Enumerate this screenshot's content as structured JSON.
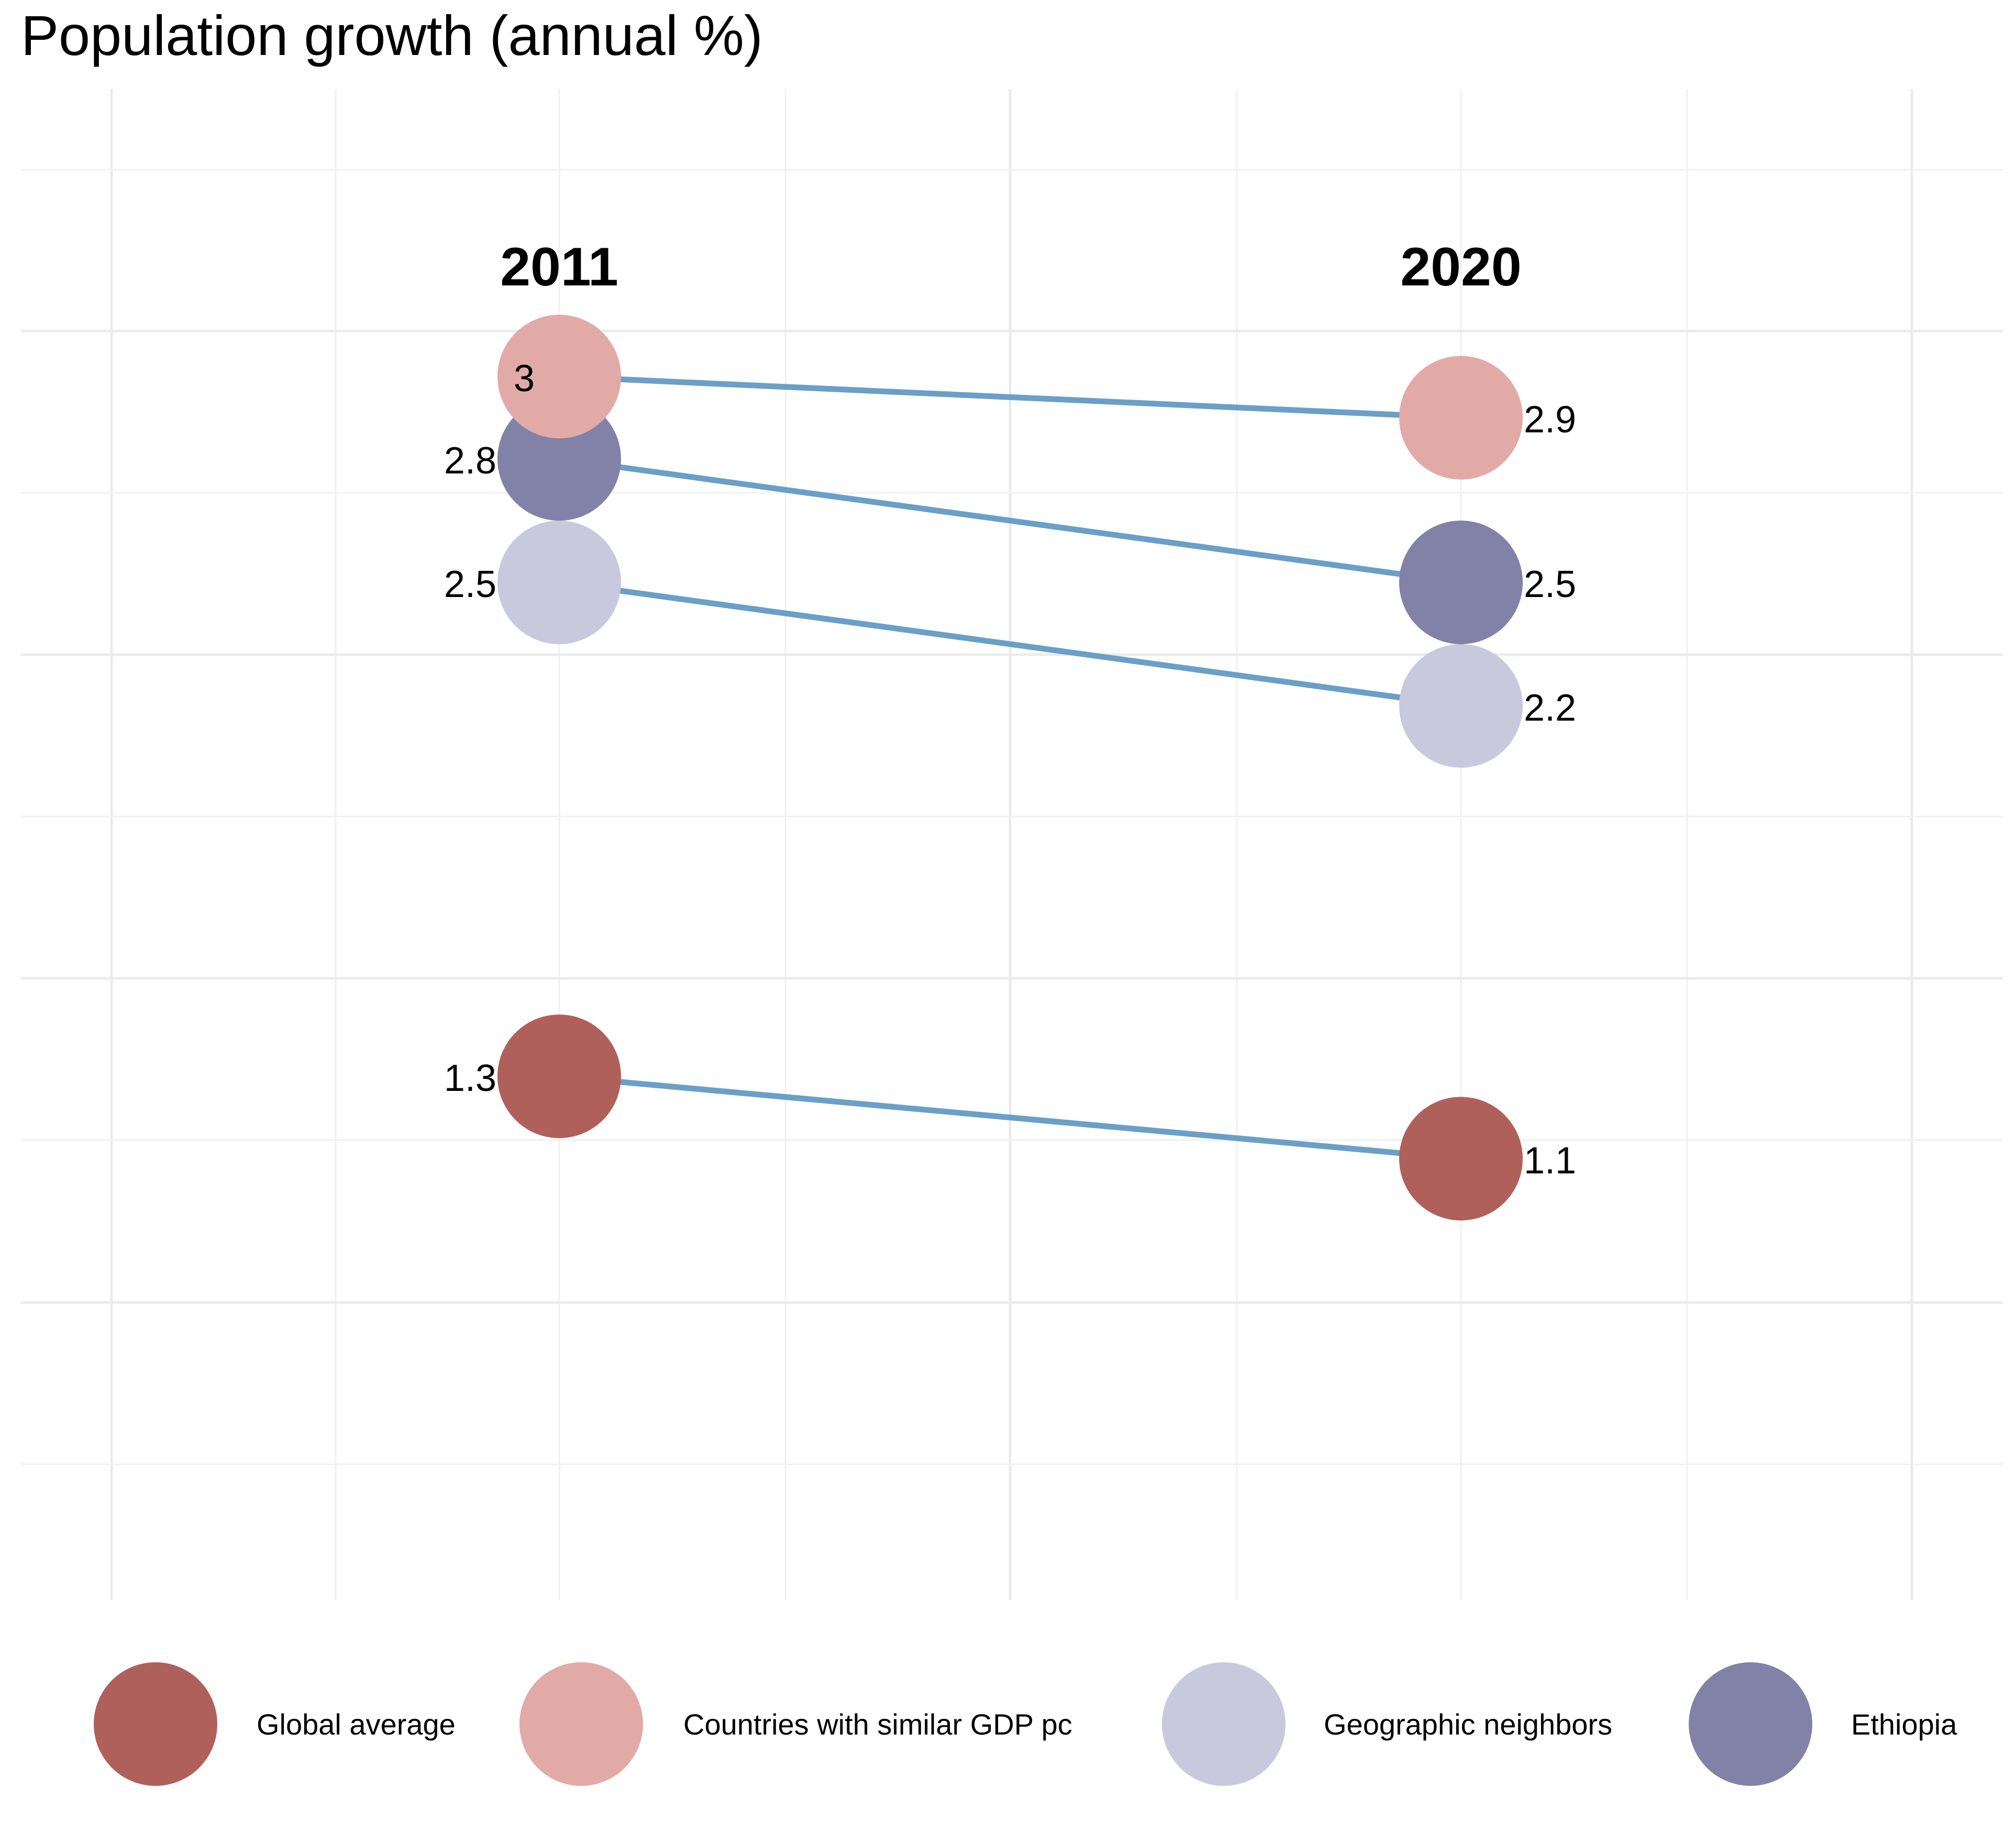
{
  "chart_data": {
    "type": "dumbbell",
    "title": "Population growth (annual %)",
    "x_categories": [
      "2011",
      "2020"
    ],
    "series": [
      {
        "name": "Global average",
        "color": "#b0605b",
        "values": [
          1.3,
          1.1
        ],
        "labels": [
          "1.3",
          "1.1"
        ]
      },
      {
        "name": "Countries with similar GDP pc",
        "color": "#e2aaa6",
        "values": [
          3.0,
          2.9
        ],
        "labels": [
          "3",
          "2.9"
        ]
      },
      {
        "name": "Geographic neighbors",
        "color": "#c8c9dc",
        "values": [
          2.5,
          2.2
        ],
        "labels": [
          "2.5",
          "2.2"
        ]
      },
      {
        "name": "Ethiopia",
        "color": "#8281a8",
        "values": [
          2.8,
          2.5
        ],
        "labels": [
          "2.8",
          "2.5"
        ]
      }
    ],
    "connector_color": "#6a9fc7",
    "grid": true,
    "legend_position": "bottom"
  }
}
